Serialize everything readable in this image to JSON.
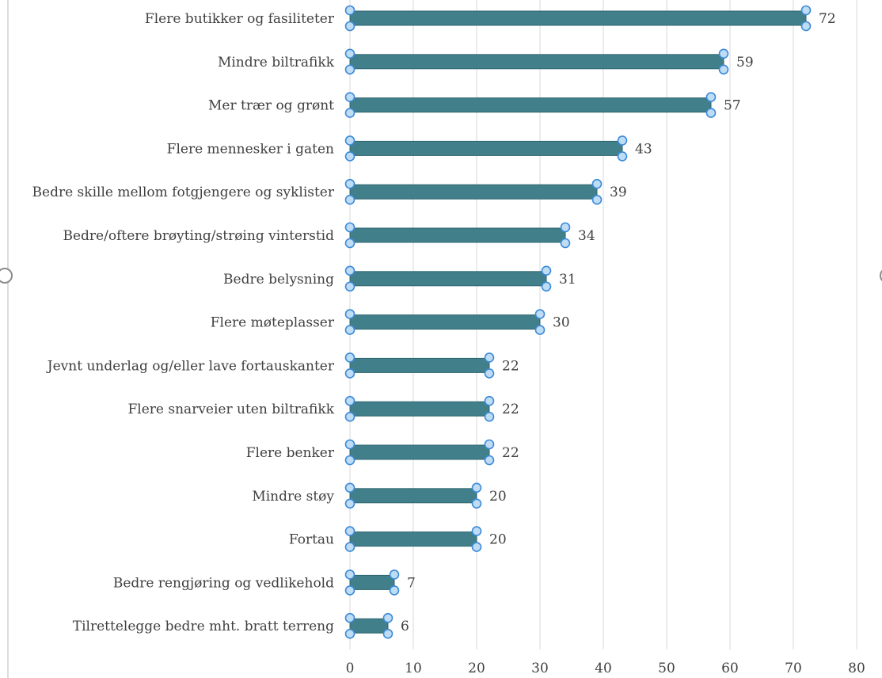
{
  "chart_data": {
    "type": "bar",
    "orientation": "horizontal",
    "categories": [
      "Flere butikker og fasiliteter",
      "Mindre biltrafikk",
      "Mer trær og grønt",
      "Flere mennesker i gaten",
      "Bedre skille mellom fotgjengere og syklister",
      "Bedre/oftere brøyting/strøing vinterstid",
      "Bedre belysning",
      "Flere møteplasser",
      "Jevnt underlag og/eller lave fortauskanter",
      "Flere snarveier uten biltrafikk",
      "Flere benker",
      "Mindre støy",
      "Fortau",
      "Bedre rengjøring og vedlikehold",
      "Tilrettelegge bedre mht. bratt terreng"
    ],
    "values": [
      72,
      59,
      57,
      43,
      39,
      34,
      31,
      30,
      22,
      22,
      22,
      20,
      20,
      7,
      6
    ],
    "value_labels": [
      "72",
      "59",
      "57",
      "43",
      "39",
      "34",
      "31",
      "30",
      "22",
      "22",
      "22",
      "20",
      "20",
      "7",
      "6"
    ],
    "xlim": [
      0,
      80
    ],
    "x_ticks": [
      "0",
      "10",
      "20",
      "30",
      "40",
      "50",
      "60",
      "70",
      "80"
    ],
    "grid": "vertical",
    "title": "",
    "xlabel": "",
    "ylabel": "",
    "bar_color": "#41808a",
    "bar_border_color": "#2f6670",
    "selection_handle_color": "#3b8ad9",
    "gridline_color": "#d9d9d9",
    "text_color": "#404040"
  }
}
